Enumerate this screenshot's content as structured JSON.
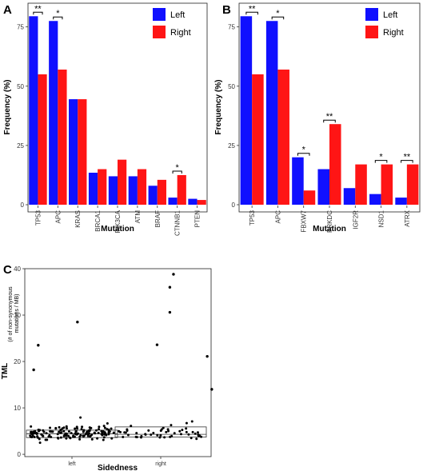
{
  "chart_data": [
    {
      "panel": "A",
      "type": "bar",
      "xlabel": "Mutation",
      "ylabel": "Frequency (%)",
      "ylim": [
        0,
        85
      ],
      "yticks": [
        "0",
        "25",
        "50",
        "75"
      ],
      "categories": [
        "TP53",
        "APC",
        "KRAS",
        "BRCA1",
        "PIK3CA",
        "ATM",
        "BRAF",
        "CTNNB1",
        "PTEN"
      ],
      "series": [
        {
          "name": "Left",
          "color": "#1010ff",
          "values": [
            79.5,
            77.5,
            44.5,
            13.5,
            12,
            12,
            8,
            3,
            2.5
          ]
        },
        {
          "name": "Right",
          "color": "#ff1515",
          "values": [
            55,
            57,
            44.5,
            15,
            19,
            15,
            10.5,
            12.5,
            2
          ]
        }
      ],
      "significance": [
        {
          "category": "TP53",
          "label": "**"
        },
        {
          "category": "APC",
          "label": "*"
        },
        {
          "category": "CTNNB1",
          "label": "*"
        }
      ],
      "legend": "top-right"
    },
    {
      "panel": "B",
      "type": "bar",
      "xlabel": "Mutation",
      "ylabel": "Frequency (%)",
      "ylim": [
        0,
        85
      ],
      "yticks": [
        "0",
        "25",
        "50",
        "75"
      ],
      "categories": [
        "TP53",
        "APC",
        "FBXW7",
        "PRKDC",
        "IGF2R",
        "NSD1",
        "ATRX"
      ],
      "series": [
        {
          "name": "Left",
          "color": "#1010ff",
          "values": [
            79.5,
            77.5,
            20,
            15,
            7,
            4.5,
            3
          ]
        },
        {
          "name": "Right",
          "color": "#ff1515",
          "values": [
            55,
            57,
            6,
            34,
            17,
            17,
            17
          ]
        }
      ],
      "significance": [
        {
          "category": "TP53",
          "label": "**"
        },
        {
          "category": "APC",
          "label": "*"
        },
        {
          "category": "FBXW7",
          "label": "*"
        },
        {
          "category": "PRKDC",
          "label": "**"
        },
        {
          "category": "NSD1",
          "label": "*"
        },
        {
          "category": "ATRX",
          "label": "**"
        }
      ],
      "legend": "top-right"
    },
    {
      "panel": "C",
      "type": "scatter",
      "xlabel": "Sidedness",
      "ylabel": "TML",
      "ylabel2": "(# of non-synonymous mutations / MB)",
      "ylim": [
        -0.5,
        40
      ],
      "yticks": [
        "0",
        "10",
        "20",
        "30",
        "40"
      ],
      "categories": [
        "left",
        "right"
      ],
      "boxes": [
        {
          "category": "left",
          "q1": 3.6,
          "median": 4.4,
          "q3": 5.2
        },
        {
          "category": "right",
          "q1": 3.7,
          "median": 4.3,
          "q3": 5.9
        }
      ],
      "outliers": [
        {
          "category": "left",
          "x_offset": 0.06,
          "y": 28.5
        },
        {
          "category": "left",
          "x_offset": -0.37,
          "y": 23.5
        },
        {
          "category": "left",
          "x_offset": -0.42,
          "y": 18.2
        },
        {
          "category": "right",
          "x_offset": 0.14,
          "y": 38.8
        },
        {
          "category": "right",
          "x_offset": 0.1,
          "y": 36.0
        },
        {
          "category": "right",
          "x_offset": 0.1,
          "y": 30.6
        },
        {
          "category": "right",
          "x_offset": -0.04,
          "y": 23.6
        },
        {
          "category": "right",
          "x_offset": 0.51,
          "y": 21.1
        },
        {
          "category": "right",
          "x_offset": 0.56,
          "y": 14.0
        }
      ],
      "jitter_counts": [
        {
          "category": "left",
          "n": 150
        },
        {
          "category": "right",
          "n": 50
        }
      ]
    }
  ]
}
